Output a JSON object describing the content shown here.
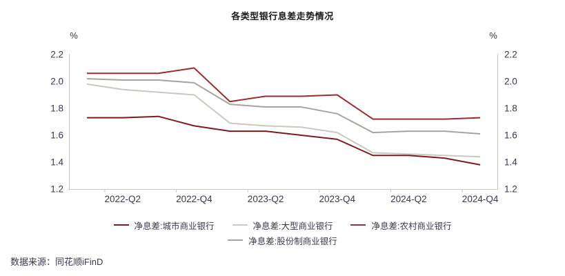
{
  "title": "各类型银行息差走势情况",
  "unit_left": "%",
  "unit_right": "%",
  "source": "数据来源：同花顺iFinD",
  "colors": {
    "axis_line": "#c9c9c9",
    "tick_text": "#383850",
    "title_text": "#1a1a1a",
    "city_red": "#7e1a1f",
    "rural_red": "#9e2a2d",
    "large_gray": "#cac9bd",
    "joint_gray": "#a6a59a"
  },
  "chart_data": {
    "type": "line",
    "title": "各类型银行息差走势情况",
    "ylabel": "%",
    "categories": [
      "2022-Q1",
      "2022-Q2",
      "2022-Q3",
      "2022-Q4",
      "2023-Q1",
      "2023-Q2",
      "2023-Q3",
      "2023-Q4",
      "2024-Q1",
      "2024-Q2",
      "2024-Q3",
      "2024-Q4"
    ],
    "x_tick_labels": [
      "2022-Q2",
      "2022-Q4",
      "2023-Q2",
      "2023-Q4",
      "2024-Q2",
      "2024-Q4"
    ],
    "series": [
      {
        "name": "净息差:城市商业银行",
        "color": "#7e1a1f",
        "values": [
          1.73,
          1.73,
          1.74,
          1.67,
          1.63,
          1.63,
          1.6,
          1.57,
          1.45,
          1.45,
          1.43,
          1.38
        ]
      },
      {
        "name": "净息差:大型商业银行",
        "color": "#cac9bd",
        "values": [
          1.98,
          1.94,
          1.92,
          1.9,
          1.69,
          1.67,
          1.66,
          1.62,
          1.47,
          1.46,
          1.45,
          1.44
        ]
      },
      {
        "name": "净息差:农村商业银行",
        "color": "#9e2a2d",
        "values": [
          2.06,
          2.06,
          2.06,
          2.1,
          1.85,
          1.89,
          1.89,
          1.9,
          1.72,
          1.72,
          1.72,
          1.73
        ]
      },
      {
        "name": "净息差:股份制商业银行",
        "color": "#a6a59a",
        "values": [
          2.02,
          2.01,
          2.01,
          1.99,
          1.83,
          1.81,
          1.81,
          1.76,
          1.62,
          1.63,
          1.63,
          1.61
        ]
      }
    ],
    "ylim": [
      1.2,
      2.2
    ],
    "y_ticks": [
      2.2,
      2.0,
      1.8,
      1.6,
      1.4,
      1.2
    ],
    "grid": false,
    "legend_position": "bottom",
    "legend_rows": [
      [
        0,
        1,
        2
      ],
      [
        3
      ]
    ]
  }
}
